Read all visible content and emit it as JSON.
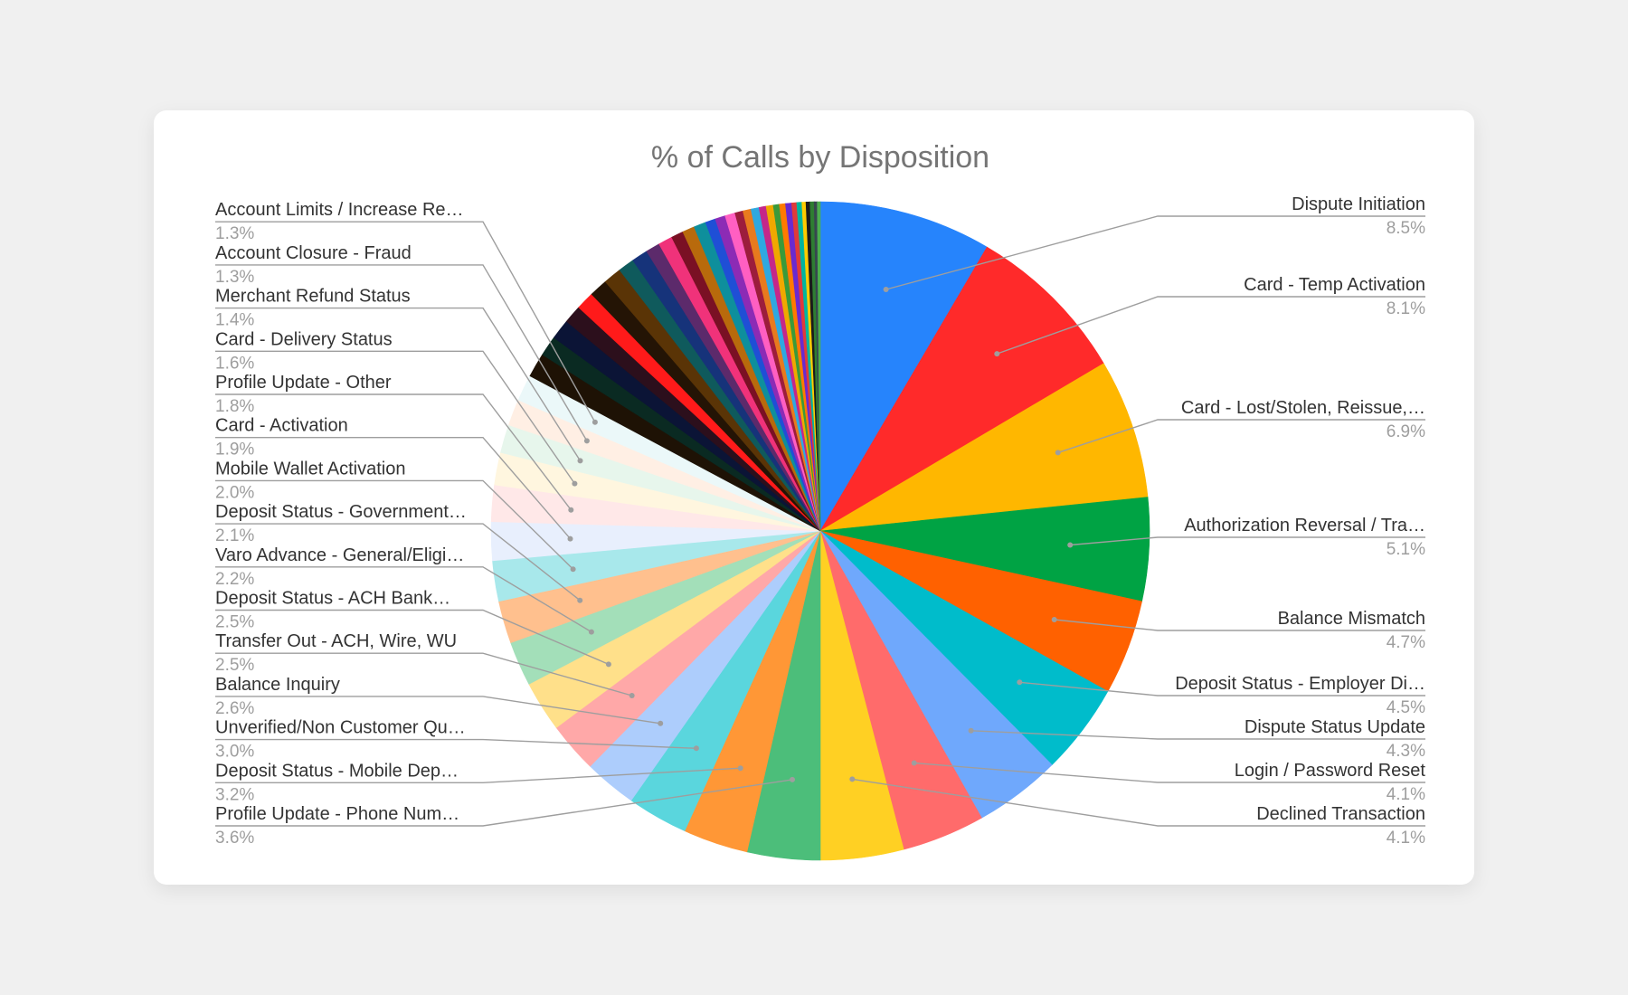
{
  "chart_data": {
    "type": "pie",
    "title": "% of Calls by Disposition",
    "start_angle_deg": 0,
    "labeled_slices": [
      {
        "label": "Dispute Initiation",
        "value_label": "8.5%",
        "value": 8.5,
        "color": "#2684fc",
        "side": "right"
      },
      {
        "label": "Card - Temp Activation",
        "value_label": "8.1%",
        "value": 8.1,
        "color": "#ff2a2a",
        "side": "right"
      },
      {
        "label": "Card - Lost/Stolen, Reissue,…",
        "value_label": "6.9%",
        "value": 6.9,
        "color": "#ffb700",
        "side": "right"
      },
      {
        "label": "Authorization Reversal / Tra…",
        "value_label": "5.1%",
        "value": 5.1,
        "color": "#00a344",
        "side": "right"
      },
      {
        "label": "Balance Mismatch",
        "value_label": "4.7%",
        "value": 4.7,
        "color": "#ff6100",
        "side": "right"
      },
      {
        "label": "Deposit Status - Employer Di…",
        "value_label": "4.5%",
        "value": 4.5,
        "color": "#00bccb",
        "side": "right"
      },
      {
        "label": "Dispute Status Update",
        "value_label": "4.3%",
        "value": 4.3,
        "color": "#6fa8fc",
        "side": "right"
      },
      {
        "label": "Login / Password Reset",
        "value_label": "4.1%",
        "value": 4.1,
        "color": "#ff6b6b",
        "side": "right"
      },
      {
        "label": "Declined Transaction",
        "value_label": "4.1%",
        "value": 4.1,
        "color": "#ffd023",
        "side": "right"
      },
      {
        "label": "Profile Update - Phone Num…",
        "value_label": "3.6%",
        "value": 3.6,
        "color": "#4cbe7a",
        "side": "left"
      },
      {
        "label": "Deposit Status - Mobile Dep…",
        "value_label": "3.2%",
        "value": 3.2,
        "color": "#ff9736",
        "side": "left"
      },
      {
        "label": "Unverified/Non Customer Qu…",
        "value_label": "3.0%",
        "value": 3.0,
        "color": "#5ad6dd",
        "side": "left"
      },
      {
        "label": "Balance Inquiry",
        "value_label": "2.6%",
        "value": 2.6,
        "color": "#adcdfc",
        "side": "left"
      },
      {
        "label": "Transfer Out - ACH, Wire, WU",
        "value_label": "2.5%",
        "value": 2.5,
        "color": "#ffa8a8",
        "side": "left"
      },
      {
        "label": "Deposit Status - ACH Bank…",
        "value_label": "2.5%",
        "value": 2.5,
        "color": "#ffe08a",
        "side": "left"
      },
      {
        "label": "Varo Advance - General/Eligi…",
        "value_label": "2.2%",
        "value": 2.2,
        "color": "#a3dfb9",
        "side": "left"
      },
      {
        "label": "Deposit Status - Government…",
        "value_label": "2.1%",
        "value": 2.1,
        "color": "#ffc08e",
        "side": "left"
      },
      {
        "label": "Mobile Wallet Activation",
        "value_label": "2.0%",
        "value": 2.0,
        "color": "#a8e8eb",
        "side": "left"
      },
      {
        "label": "Card - Activation",
        "value_label": "1.9%",
        "value": 1.9,
        "color": "#e8effd",
        "side": "left"
      },
      {
        "label": "Profile Update - Other",
        "value_label": "1.8%",
        "value": 1.8,
        "color": "#ffe8e8",
        "side": "left"
      },
      {
        "label": "Card - Delivery Status",
        "value_label": "1.6%",
        "value": 1.6,
        "color": "#fff6df",
        "side": "left"
      },
      {
        "label": "Merchant Refund Status",
        "value_label": "1.4%",
        "value": 1.4,
        "color": "#e7f6ec",
        "side": "left"
      },
      {
        "label": "Account Closure - Fraud",
        "value_label": "1.3%",
        "value": 1.3,
        "color": "#ffefe4",
        "side": "left"
      },
      {
        "label": "Account Limits / Increase Re…",
        "value_label": "1.3%",
        "value": 1.3,
        "color": "#ebf8f9",
        "side": "left"
      }
    ],
    "unlabeled_slices": [
      {
        "value": 1.2,
        "color": "#1e1205"
      },
      {
        "value": 1.0,
        "color": "#0a2a22"
      },
      {
        "value": 1.0,
        "color": "#0b1436"
      },
      {
        "value": 0.9,
        "color": "#2c0f1c"
      },
      {
        "value": 0.9,
        "color": "#ff1a1a"
      },
      {
        "value": 0.9,
        "color": "#241405"
      },
      {
        "value": 0.9,
        "color": "#5a3406"
      },
      {
        "value": 0.8,
        "color": "#0f5a5c"
      },
      {
        "value": 0.8,
        "color": "#16337a"
      },
      {
        "value": 0.7,
        "color": "#5c2a6b"
      },
      {
        "value": 0.7,
        "color": "#f0327a"
      },
      {
        "value": 0.6,
        "color": "#7a1024"
      },
      {
        "value": 0.6,
        "color": "#b86a0c"
      },
      {
        "value": 0.6,
        "color": "#0e8f9c"
      },
      {
        "value": 0.5,
        "color": "#1f4fd6"
      },
      {
        "value": 0.5,
        "color": "#8c2bb5"
      },
      {
        "value": 0.5,
        "color": "#ff5fc2"
      },
      {
        "value": 0.4,
        "color": "#9c1d3c"
      },
      {
        "value": 0.4,
        "color": "#e87a1e"
      },
      {
        "value": 0.4,
        "color": "#2fa8e0"
      },
      {
        "value": 0.35,
        "color": "#c4278a"
      },
      {
        "value": 0.35,
        "color": "#f0a800"
      },
      {
        "value": 0.3,
        "color": "#3a9a3a"
      },
      {
        "value": 0.3,
        "color": "#ff7a00"
      },
      {
        "value": 0.3,
        "color": "#6a2ad0"
      },
      {
        "value": 0.25,
        "color": "#e03a3a"
      },
      {
        "value": 0.25,
        "color": "#00b4a0"
      },
      {
        "value": 0.2,
        "color": "#ffcc00"
      },
      {
        "value": 0.2,
        "color": "#1b1b1b"
      },
      {
        "value": 0.2,
        "color": "#2e7d32"
      },
      {
        "value": 0.15,
        "color": "#37474f"
      },
      {
        "value": 0.15,
        "color": "#4caf50"
      }
    ],
    "legend": "none"
  }
}
